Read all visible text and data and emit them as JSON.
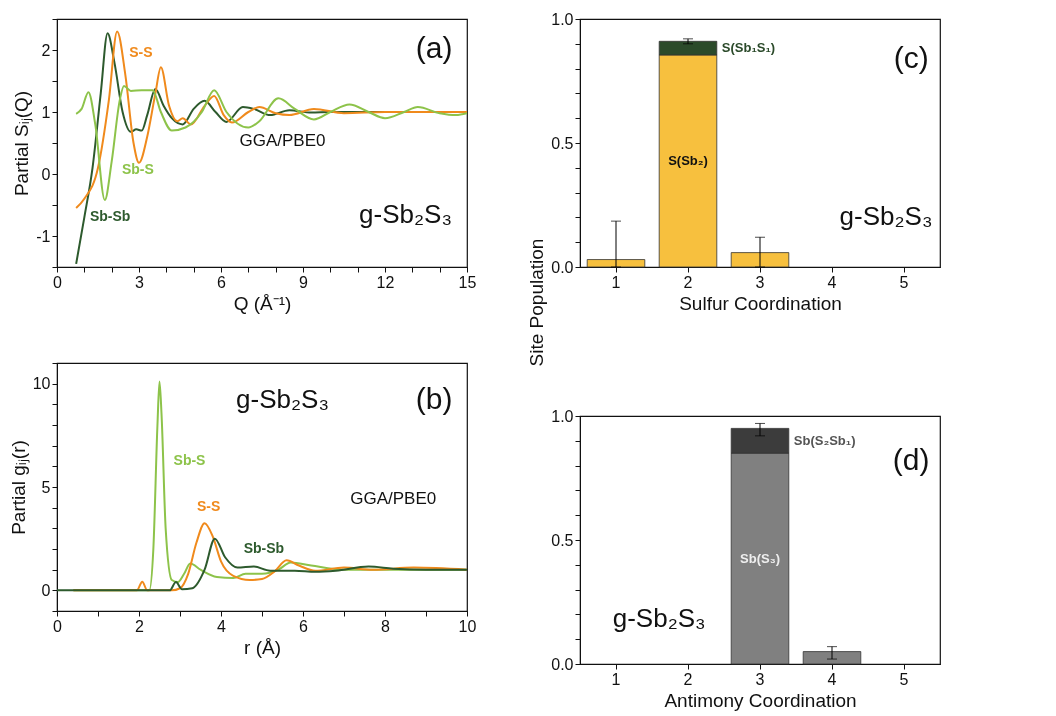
{
  "chart_data": [
    {
      "type": "line",
      "xlabel": "Q (Å⁻¹)",
      "ylabel": "Partial Sᵢⱼ(Q)",
      "xlim": [
        0,
        15
      ],
      "ylim": [
        -1.5,
        2.5
      ],
      "xticks": [
        0,
        {
          "value": 1,
          "label": null
        },
        {
          "value": 2,
          "label": null
        },
        3,
        {
          "value": 4,
          "label": null
        },
        {
          "value": 5,
          "label": null
        },
        6,
        {
          "value": 7,
          "label": null
        },
        {
          "value": 8,
          "label": null
        },
        9,
        {
          "value": 10,
          "label": null
        },
        {
          "value": 11,
          "label": null
        },
        12,
        {
          "value": 13,
          "label": null
        },
        {
          "value": 14,
          "label": null
        },
        15
      ],
      "yticks": [
        {
          "value": -1.5,
          "label": null
        },
        -1,
        {
          "value": -0.5,
          "label": null
        },
        0,
        {
          "value": 0.5,
          "label": null
        },
        1,
        {
          "value": 1.5,
          "label": null
        },
        2,
        {
          "value": 2.5,
          "label": null
        }
      ],
      "annotations": [
        "(a)",
        "GGA/PBE0",
        "g-Sb₂S₃"
      ],
      "series": [
        {
          "name": "Sb-Sb",
          "color": "#2d5a2d",
          "x": [
            0.7,
            1.0,
            1.3,
            1.6,
            1.85,
            2.1,
            2.4,
            2.7,
            2.9,
            3.1,
            3.3,
            3.6,
            3.9,
            4.2,
            4.6,
            5.0,
            5.4,
            5.8,
            6.2,
            6.8,
            7.2,
            7.8,
            8.5,
            9.3,
            10,
            12,
            15
          ],
          "values": [
            -1.45,
            -0.7,
            0.1,
            1.3,
            2.27,
            1.8,
            1.0,
            0.68,
            0.72,
            0.7,
            0.95,
            1.37,
            1.1,
            0.9,
            0.8,
            1.05,
            1.18,
            1.0,
            0.84,
            1.08,
            1.05,
            0.95,
            1.03,
            0.99,
            1.0,
            1.0,
            1.0
          ]
        },
        {
          "name": "S-S",
          "color": "#f08a1c",
          "x": [
            0.7,
            1.0,
            1.5,
            1.9,
            2.2,
            2.5,
            2.8,
            3.0,
            3.3,
            3.6,
            3.8,
            4.1,
            4.4,
            4.6,
            4.9,
            5.4,
            5.75,
            6.1,
            6.4,
            7.0,
            7.4,
            8.0,
            8.5,
            9.4,
            10.5,
            12,
            15
          ],
          "values": [
            -0.55,
            -0.4,
            0.1,
            1.2,
            2.3,
            1.6,
            0.5,
            0.18,
            0.6,
            1.3,
            1.72,
            1.1,
            0.85,
            0.9,
            0.8,
            1.1,
            1.26,
            0.95,
            0.83,
            1.0,
            1.08,
            0.98,
            0.95,
            1.05,
            0.98,
            1.0,
            1.0
          ]
        },
        {
          "name": "Sb-S",
          "color": "#8dc34a",
          "x": [
            0.7,
            0.9,
            1.15,
            1.4,
            1.75,
            2.0,
            2.3,
            2.45,
            2.7,
            3.1,
            3.5,
            3.8,
            4.2,
            4.7,
            5.3,
            5.75,
            6.2,
            7.0,
            7.4,
            8.1,
            8.7,
            9.4,
            10.0,
            10.7,
            11.4,
            12.0,
            12.7,
            13.2,
            14,
            14.6,
            15
          ],
          "values": [
            0.97,
            1.05,
            1.32,
            0.8,
            -0.42,
            0.2,
            1.2,
            1.42,
            1.34,
            1.35,
            1.35,
            1.0,
            0.7,
            0.75,
            1.0,
            1.35,
            1.0,
            0.75,
            0.85,
            1.22,
            1.05,
            0.88,
            1.0,
            1.12,
            1.0,
            0.9,
            1.0,
            1.08,
            0.98,
            0.95,
            0.98
          ]
        }
      ]
    },
    {
      "type": "line",
      "xlabel": "r (Å)",
      "ylabel": "Partial gᵢⱼ(r)",
      "xlim": [
        0,
        10
      ],
      "ylim": [
        -1,
        11
      ],
      "xticks": [
        0,
        {
          "value": 1,
          "label": null
        },
        2,
        {
          "value": 3,
          "label": null
        },
        4,
        {
          "value": 5,
          "label": null
        },
        6,
        {
          "value": 7,
          "label": null
        },
        8,
        {
          "value": 9,
          "label": null
        },
        10
      ],
      "yticks": [
        {
          "value": -1,
          "label": null
        },
        0,
        {
          "value": 1,
          "label": null
        },
        {
          "value": 2,
          "label": null
        },
        {
          "value": 3,
          "label": null
        },
        {
          "value": 4,
          "label": null
        },
        5,
        {
          "value": 6,
          "label": null
        },
        {
          "value": 7,
          "label": null
        },
        {
          "value": 8,
          "label": null
        },
        {
          "value": 9,
          "label": null
        },
        10,
        {
          "value": 11,
          "label": null
        }
      ],
      "annotations": [
        "g-Sb₂S₃",
        "(b)",
        "GGA/PBE0"
      ],
      "series": [
        {
          "name": "Sb-S",
          "color": "#8dc34a",
          "x": [
            0.4,
            2.25,
            2.35,
            2.45,
            2.5,
            2.55,
            2.65,
            2.8,
            2.95,
            3.1,
            3.25,
            3.5,
            3.9,
            4.3,
            4.6,
            5.0,
            5.4,
            5.7,
            6.2,
            7,
            8,
            10
          ],
          "values": [
            0,
            0,
            2,
            8,
            10.1,
            8.5,
            3,
            0.5,
            0.4,
            0.8,
            1.3,
            1.0,
            0.65,
            0.6,
            0.8,
            0.8,
            1.0,
            1.35,
            1.2,
            1.0,
            1.0,
            1.0
          ]
        },
        {
          "name": "S-S",
          "color": "#f08a1c",
          "x": [
            0.4,
            1.95,
            2.08,
            2.2,
            2.8,
            3.0,
            3.2,
            3.4,
            3.6,
            3.8,
            4.0,
            4.3,
            4.7,
            5.0,
            5.3,
            5.6,
            5.9,
            6.3,
            7,
            7.7,
            8.7,
            10
          ],
          "values": [
            0,
            0,
            0.42,
            0,
            0,
            0.1,
            0.8,
            2.3,
            3.25,
            2.6,
            1.4,
            0.7,
            0.5,
            0.55,
            0.9,
            1.45,
            1.2,
            0.95,
            1.1,
            1.0,
            1.1,
            1.0
          ]
        },
        {
          "name": "Sb-Sb",
          "color": "#2d5a2d",
          "x": [
            0,
            2.75,
            2.9,
            3.05,
            3.3,
            3.6,
            3.85,
            4.1,
            4.4,
            4.8,
            5.2,
            5.8,
            6.3,
            6.8,
            7.6,
            8.2,
            9,
            10
          ],
          "values": [
            0,
            0,
            0.4,
            0.05,
            0.1,
            1.0,
            2.5,
            1.6,
            1.1,
            1.15,
            0.95,
            0.95,
            0.9,
            0.95,
            1.15,
            1.05,
            1.0,
            1.0
          ]
        }
      ]
    },
    {
      "type": "bar",
      "stacked": true,
      "xlabel": "Sulfur Coordination",
      "ylabel": "Site Population",
      "categories": [
        "1",
        "2",
        "3",
        "4",
        "5"
      ],
      "ylim": [
        0,
        1
      ],
      "yticks": [
        {
          "value": 0,
          "label": "0.0"
        },
        {
          "value": 0.1,
          "label": null
        },
        {
          "value": 0.2,
          "label": null
        },
        {
          "value": 0.3,
          "label": null
        },
        {
          "value": 0.4,
          "label": null
        },
        {
          "value": 0.5,
          "label": "0.5"
        },
        {
          "value": 0.6,
          "label": null
        },
        {
          "value": 0.7,
          "label": null
        },
        {
          "value": 0.8,
          "label": null
        },
        {
          "value": 0.9,
          "label": null
        },
        {
          "value": 1,
          "label": "1.0"
        }
      ],
      "annotations": [
        "(c)",
        "g-Sb₂S₃"
      ],
      "series": [
        {
          "name": "S(Sb₂)",
          "color": "#f7c03e",
          "values": [
            0.03,
            0.855,
            0.058,
            null,
            null
          ],
          "errors": [
            [
              0,
              0.185
            ],
            null,
            [
              0,
              0.12
            ],
            null,
            null
          ]
        },
        {
          "name": "S(Sb₁S₁)",
          "color": "#2b4a2a",
          "values": [
            null,
            0.055,
            null,
            null,
            null
          ],
          "errors": [
            null,
            [
              0.9,
              0.92
            ],
            null,
            null,
            null
          ]
        }
      ]
    },
    {
      "type": "bar",
      "stacked": true,
      "xlabel": "Antimony Coordination",
      "categories": [
        "1",
        "2",
        "3",
        "4",
        "5"
      ],
      "ylim": [
        0,
        1
      ],
      "yticks": [
        {
          "value": 0,
          "label": "0.0"
        },
        {
          "value": 0.1,
          "label": null
        },
        {
          "value": 0.2,
          "label": null
        },
        {
          "value": 0.3,
          "label": null
        },
        {
          "value": 0.4,
          "label": null
        },
        {
          "value": 0.5,
          "label": "0.5"
        },
        {
          "value": 0.6,
          "label": null
        },
        {
          "value": 0.7,
          "label": null
        },
        {
          "value": 0.8,
          "label": null
        },
        {
          "value": 0.9,
          "label": null
        },
        {
          "value": 1,
          "label": "1.0"
        }
      ],
      "annotations": [
        "g-Sb₂S₃",
        "(d)"
      ],
      "series": [
        {
          "name": "Sb(S₃)",
          "color": "#808080",
          "values": [
            null,
            null,
            0.85,
            0.05,
            null
          ],
          "errors": [
            null,
            null,
            null,
            [
              0.02,
              0.07
            ],
            null
          ]
        },
        {
          "name": "Sb(S₂Sb₁)",
          "color": "#3c3c3c",
          "values": [
            null,
            null,
            0.1,
            null,
            null
          ],
          "errors": [
            null,
            null,
            [
              0.92,
              0.97
            ],
            null,
            null
          ]
        }
      ]
    }
  ]
}
